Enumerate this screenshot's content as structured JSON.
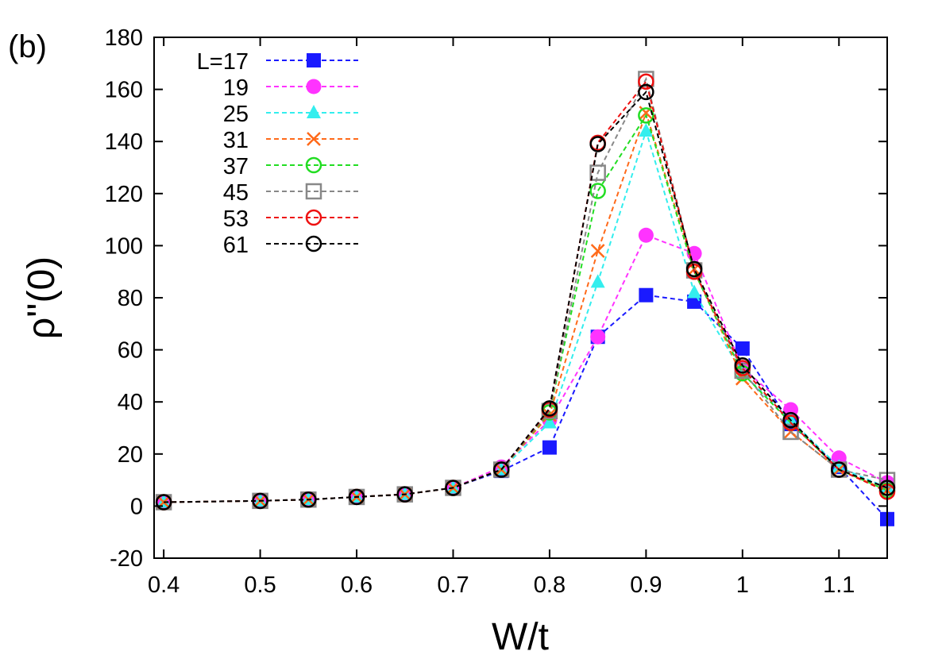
{
  "panel_label": "(b)",
  "chart_data": {
    "type": "line",
    "xlabel": "W/t",
    "ylabel": "ρ''(0)",
    "xlim": [
      0.39,
      1.15
    ],
    "ylim": [
      -20,
      180
    ],
    "x_ticks": [
      0.4,
      0.5,
      0.6,
      0.7,
      0.8,
      0.9,
      1,
      1.1
    ],
    "x_tick_labels": [
      "0.4",
      "0.5",
      "0.6",
      "0.7",
      "0.8",
      "0.9",
      "1",
      "1.1"
    ],
    "y_ticks": [
      -20,
      0,
      20,
      40,
      60,
      80,
      100,
      120,
      140,
      160,
      180
    ],
    "y_tick_labels": [
      "-20",
      "0",
      "20",
      "40",
      "60",
      "80",
      "100",
      "120",
      "140",
      "160",
      "180"
    ],
    "legend_placement": "top-left",
    "x": [
      0.4,
      0.5,
      0.55,
      0.6,
      0.65,
      0.7,
      0.75,
      0.8,
      0.85,
      0.9,
      0.95,
      1.0,
      1.05,
      1.1,
      1.15
    ],
    "series": [
      {
        "name": "L=17",
        "color": "#1a1aff",
        "marker": "square-filled",
        "values": [
          1.5,
          2,
          2.5,
          3.5,
          4.5,
          7,
          13.5,
          22.5,
          65,
          81,
          78.5,
          60.5,
          31.5,
          15,
          -5
        ]
      },
      {
        "name": "19",
        "color": "#ff33ff",
        "marker": "circle-filled",
        "values": [
          1.5,
          2,
          2.5,
          3.5,
          4.5,
          7,
          15,
          33,
          65,
          104,
          97,
          53,
          37,
          18.5,
          9
        ]
      },
      {
        "name": "25",
        "color": "#33eeee",
        "marker": "triangle-filled",
        "values": [
          1.5,
          2,
          2.5,
          3.5,
          4.5,
          7,
          14,
          32,
          86,
          144,
          82,
          51,
          33,
          15,
          7
        ]
      },
      {
        "name": "31",
        "color": "#ff6a1a",
        "marker": "cross",
        "values": [
          1.5,
          2,
          2.5,
          3.5,
          4.5,
          7,
          14,
          35,
          98,
          151,
          91,
          49,
          28.5,
          14,
          6
        ]
      },
      {
        "name": "37",
        "color": "#22dd22",
        "marker": "circle-open",
        "values": [
          1.5,
          2,
          2.5,
          3.5,
          4.5,
          7,
          14,
          36,
          121,
          150,
          90,
          51,
          32,
          14,
          6
        ]
      },
      {
        "name": "45",
        "color": "#888888",
        "marker": "square-open",
        "values": [
          1.5,
          2,
          2.5,
          3.5,
          4.5,
          7,
          14,
          36.5,
          128,
          164,
          90.5,
          52,
          28.5,
          14,
          10
        ]
      },
      {
        "name": "53",
        "color": "#ee1111",
        "marker": "circle-open",
        "values": [
          1.5,
          2,
          2.5,
          3.5,
          4.5,
          7,
          14,
          37,
          139.5,
          163,
          90,
          53,
          32,
          14,
          5.5
        ]
      },
      {
        "name": "61",
        "color": "#000000",
        "marker": "circle-open",
        "values": [
          1.5,
          2,
          2.5,
          3.5,
          4.5,
          7,
          14,
          37.5,
          139,
          159,
          91,
          54,
          33,
          14,
          7
        ]
      }
    ]
  }
}
